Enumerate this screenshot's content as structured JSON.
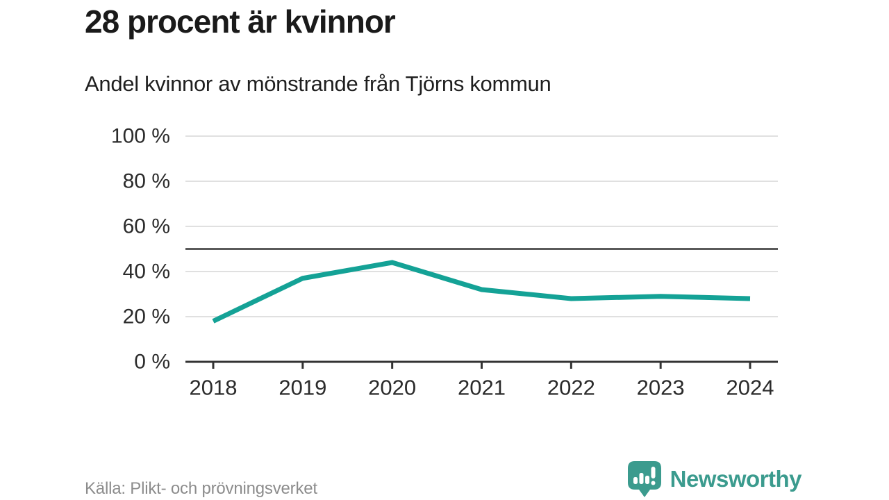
{
  "title": "28 procent är kvinnor",
  "subtitle": "Andel kvinnor av mönstrande från Tjörns kommun",
  "source": "Källa: Plikt- och prövningsverket",
  "brand": {
    "name": "Newsworthy",
    "icon": "newsworthy-speech-bubble-bar-chart-icon",
    "color": "#3b9b8e"
  },
  "colors": {
    "line": "#14a296",
    "grid": "#e0e0e0",
    "axis": "#333333",
    "reference": "#5a5a5a",
    "tick_text": "#2b2b2b",
    "muted_text": "#8c8c8c"
  },
  "chart_data": {
    "type": "line",
    "title": "28 procent är kvinnor",
    "subtitle": "Andel kvinnor av mönstrande från Tjörns kommun",
    "x": [
      2018,
      2019,
      2020,
      2021,
      2022,
      2023,
      2024
    ],
    "series": [
      {
        "name": "Andel kvinnor av mönstrande",
        "values": [
          18,
          37,
          44,
          32,
          28,
          29,
          28
        ]
      }
    ],
    "xlabel": "",
    "ylabel": "",
    "ylim": [
      0,
      100
    ],
    "yticks": [
      0,
      20,
      40,
      60,
      80,
      100
    ],
    "ytick_suffix": " %",
    "reference_line": 50,
    "grid": true,
    "legend": false,
    "line_color": "#14a296",
    "source": "Källa: Plikt- och prövningsverket"
  }
}
